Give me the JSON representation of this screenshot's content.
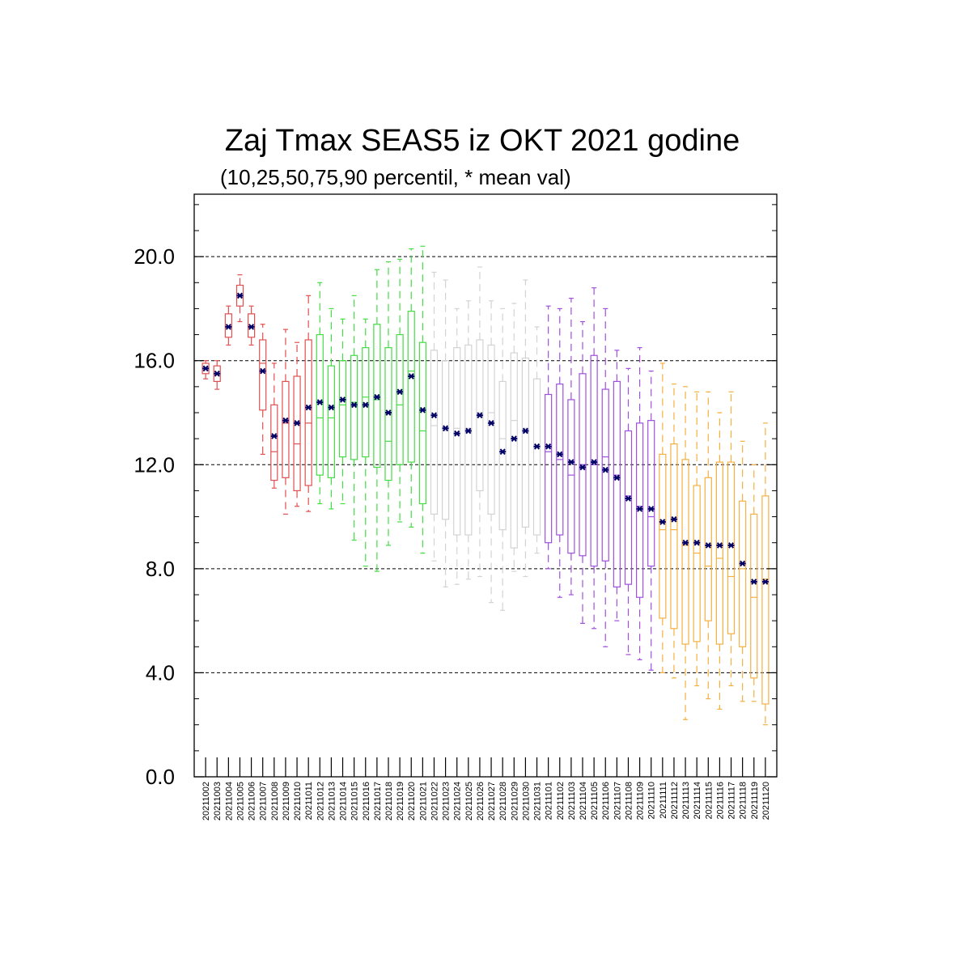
{
  "chart_data": {
    "type": "box",
    "title": "Zaj Tmax SEAS5 iz OKT 2021 godine",
    "subtitle": "(10,25,50,75,90 percentil, * mean val)",
    "ylim": [
      0,
      22.4
    ],
    "yticks": [
      "0.0",
      "4.0",
      "8.0",
      "12.0",
      "16.0",
      "20.0"
    ],
    "ytick_values": [
      0,
      4,
      8,
      12,
      16,
      20
    ],
    "grid": "horizontal dashed",
    "colors": {
      "oct_early": "#e05050",
      "oct_mid": "#44dd44",
      "oct_late": "#d3d3d3",
      "nov_early": "#a050e0",
      "nov_late": "#f5b041",
      "mean_marker": "#000066"
    },
    "categories": [
      "20211002",
      "20211003",
      "20211004",
      "20211005",
      "20211006",
      "20211007",
      "20211008",
      "20211009",
      "20211010",
      "20211011",
      "20211012",
      "20211013",
      "20211014",
      "20211015",
      "20211016",
      "20211017",
      "20211018",
      "20211019",
      "20211020",
      "20211021",
      "20211022",
      "20211023",
      "20211024",
      "20211025",
      "20211026",
      "20211027",
      "20211028",
      "20211029",
      "20211030",
      "20211031",
      "20211101",
      "20211102",
      "20211103",
      "20211104",
      "20211105",
      "20211106",
      "20211107",
      "20211108",
      "20211109",
      "20211110",
      "20211111",
      "20211112",
      "20211113",
      "20211114",
      "20211115",
      "20211116",
      "20211117",
      "20211118",
      "20211119",
      "20211120"
    ],
    "boxes": [
      {
        "p10": 15.3,
        "p25": 15.5,
        "p50": 15.7,
        "p75": 15.9,
        "p90": 16.0,
        "mean": 15.7,
        "color": "oct_early"
      },
      {
        "p10": 14.9,
        "p25": 15.2,
        "p50": 15.5,
        "p75": 15.8,
        "p90": 16.0,
        "mean": 15.5,
        "color": "oct_early"
      },
      {
        "p10": 16.6,
        "p25": 16.9,
        "p50": 17.3,
        "p75": 17.8,
        "p90": 18.1,
        "mean": 17.3,
        "color": "oct_early"
      },
      {
        "p10": 17.5,
        "p25": 18.1,
        "p50": 18.5,
        "p75": 18.9,
        "p90": 19.3,
        "mean": 18.5,
        "color": "oct_early"
      },
      {
        "p10": 16.6,
        "p25": 16.9,
        "p50": 17.3,
        "p75": 17.8,
        "p90": 18.1,
        "mean": 17.3,
        "color": "oct_early"
      },
      {
        "p10": 12.4,
        "p25": 14.1,
        "p50": 15.9,
        "p75": 16.8,
        "p90": 17.4,
        "mean": 15.6,
        "color": "oct_early"
      },
      {
        "p10": 11.1,
        "p25": 11.4,
        "p50": 12.5,
        "p75": 14.3,
        "p90": 15.9,
        "mean": 13.1,
        "color": "oct_early"
      },
      {
        "p10": 10.1,
        "p25": 11.5,
        "p50": 13.6,
        "p75": 15.2,
        "p90": 17.2,
        "mean": 13.7,
        "color": "oct_early"
      },
      {
        "p10": 10.4,
        "p25": 11.0,
        "p50": 12.8,
        "p75": 15.4,
        "p90": 16.7,
        "mean": 13.6,
        "color": "oct_early"
      },
      {
        "p10": 10.2,
        "p25": 11.2,
        "p50": 13.6,
        "p75": 16.8,
        "p90": 18.5,
        "mean": 14.2,
        "color": "oct_early"
      },
      {
        "p10": 10.5,
        "p25": 11.6,
        "p50": 13.8,
        "p75": 17.0,
        "p90": 19.0,
        "mean": 14.4,
        "color": "oct_mid"
      },
      {
        "p10": 10.3,
        "p25": 11.5,
        "p50": 13.8,
        "p75": 15.8,
        "p90": 18.0,
        "mean": 14.2,
        "color": "oct_mid"
      },
      {
        "p10": 10.5,
        "p25": 12.3,
        "p50": 14.3,
        "p75": 16.0,
        "p90": 17.6,
        "mean": 14.5,
        "color": "oct_mid"
      },
      {
        "p10": 9.1,
        "p25": 12.2,
        "p50": 14.4,
        "p75": 16.2,
        "p90": 18.5,
        "mean": 14.3,
        "color": "oct_mid"
      },
      {
        "p10": 8.1,
        "p25": 12.3,
        "p50": 14.6,
        "p75": 16.5,
        "p90": 17.6,
        "mean": 14.3,
        "color": "oct_mid"
      },
      {
        "p10": 7.9,
        "p25": 11.9,
        "p50": 14.5,
        "p75": 17.4,
        "p90": 19.5,
        "mean": 14.6,
        "color": "oct_mid"
      },
      {
        "p10": 8.9,
        "p25": 11.4,
        "p50": 12.9,
        "p75": 16.5,
        "p90": 19.8,
        "mean": 14.0,
        "color": "oct_mid"
      },
      {
        "p10": 9.8,
        "p25": 12.0,
        "p50": 14.3,
        "p75": 17.0,
        "p90": 19.9,
        "mean": 14.8,
        "color": "oct_mid"
      },
      {
        "p10": 9.6,
        "p25": 12.1,
        "p50": 15.6,
        "p75": 17.9,
        "p90": 20.3,
        "mean": 15.4,
        "color": "oct_mid"
      },
      {
        "p10": 8.6,
        "p25": 10.5,
        "p50": 13.3,
        "p75": 16.7,
        "p90": 20.4,
        "mean": 14.1,
        "color": "oct_mid"
      },
      {
        "p10": 8.3,
        "p25": 10.1,
        "p50": 13.5,
        "p75": 16.4,
        "p90": 19.4,
        "mean": 13.9,
        "color": "oct_late"
      },
      {
        "p10": 7.3,
        "p25": 9.9,
        "p50": 13.3,
        "p75": 16.0,
        "p90": 19.1,
        "mean": 13.4,
        "color": "oct_late"
      },
      {
        "p10": 7.4,
        "p25": 9.3,
        "p50": 13.4,
        "p75": 16.5,
        "p90": 18.0,
        "mean": 13.2,
        "color": "oct_late"
      },
      {
        "p10": 7.6,
        "p25": 9.3,
        "p50": 13.4,
        "p75": 16.6,
        "p90": 18.3,
        "mean": 13.3,
        "color": "oct_late"
      },
      {
        "p10": 7.7,
        "p25": 11.0,
        "p50": 14.0,
        "p75": 16.8,
        "p90": 19.6,
        "mean": 13.9,
        "color": "oct_late"
      },
      {
        "p10": 6.7,
        "p25": 10.1,
        "p50": 14.0,
        "p75": 16.6,
        "p90": 18.3,
        "mean": 13.6,
        "color": "oct_late"
      },
      {
        "p10": 6.4,
        "p25": 9.5,
        "p50": 13.0,
        "p75": 15.2,
        "p90": 18.0,
        "mean": 12.5,
        "color": "oct_late"
      },
      {
        "p10": 7.9,
        "p25": 8.8,
        "p50": 13.7,
        "p75": 16.3,
        "p90": 18.2,
        "mean": 13.0,
        "color": "oct_late"
      },
      {
        "p10": 7.7,
        "p25": 9.6,
        "p50": 13.4,
        "p75": 16.1,
        "p90": 19.1,
        "mean": 13.3,
        "color": "oct_late"
      },
      {
        "p10": 8.6,
        "p25": 9.3,
        "p50": 12.7,
        "p75": 15.3,
        "p90": 17.3,
        "mean": 12.7,
        "color": "oct_late"
      },
      {
        "p10": 8.0,
        "p25": 9.0,
        "p50": 12.5,
        "p75": 14.7,
        "p90": 18.1,
        "mean": 12.7,
        "color": "nov_early"
      },
      {
        "p10": 6.9,
        "p25": 9.3,
        "p50": 12.2,
        "p75": 15.1,
        "p90": 18.0,
        "mean": 12.4,
        "color": "nov_early"
      },
      {
        "p10": 7.0,
        "p25": 8.6,
        "p50": 11.6,
        "p75": 14.5,
        "p90": 18.4,
        "mean": 12.1,
        "color": "nov_early"
      },
      {
        "p10": 5.9,
        "p25": 8.5,
        "p50": 12.0,
        "p75": 15.5,
        "p90": 17.5,
        "mean": 11.9,
        "color": "nov_early"
      },
      {
        "p10": 5.7,
        "p25": 8.1,
        "p50": 12.0,
        "p75": 16.2,
        "p90": 18.8,
        "mean": 12.1,
        "color": "nov_early"
      },
      {
        "p10": 5.0,
        "p25": 8.3,
        "p50": 12.3,
        "p75": 14.9,
        "p90": 18.0,
        "mean": 11.8,
        "color": "nov_early"
      },
      {
        "p10": 6.0,
        "p25": 7.3,
        "p50": 11.6,
        "p75": 15.2,
        "p90": 16.4,
        "mean": 11.5,
        "color": "nov_early"
      },
      {
        "p10": 4.7,
        "p25": 7.4,
        "p50": 10.8,
        "p75": 13.3,
        "p90": 15.7,
        "mean": 10.7,
        "color": "nov_early"
      },
      {
        "p10": 4.5,
        "p25": 6.9,
        "p50": 10.4,
        "p75": 13.6,
        "p90": 16.5,
        "mean": 10.3,
        "color": "nov_early"
      },
      {
        "p10": 4.1,
        "p25": 8.1,
        "p50": 10.0,
        "p75": 13.7,
        "p90": 15.6,
        "mean": 10.3,
        "color": "nov_early"
      },
      {
        "p10": 4.0,
        "p25": 6.1,
        "p50": 9.5,
        "p75": 12.4,
        "p90": 15.9,
        "mean": 9.8,
        "color": "nov_late"
      },
      {
        "p10": 3.8,
        "p25": 5.7,
        "p50": 9.5,
        "p75": 12.8,
        "p90": 15.1,
        "mean": 9.9,
        "color": "nov_late"
      },
      {
        "p10": 2.2,
        "p25": 5.1,
        "p50": 8.9,
        "p75": 12.2,
        "p90": 15.0,
        "mean": 9.0,
        "color": "nov_late"
      },
      {
        "p10": 3.5,
        "p25": 5.2,
        "p50": 8.6,
        "p75": 11.2,
        "p90": 14.8,
        "mean": 9.0,
        "color": "nov_late"
      },
      {
        "p10": 3.0,
        "p25": 6.0,
        "p50": 8.1,
        "p75": 11.5,
        "p90": 14.8,
        "mean": 8.9,
        "color": "nov_late"
      },
      {
        "p10": 2.6,
        "p25": 5.1,
        "p50": 8.4,
        "p75": 12.1,
        "p90": 14.0,
        "mean": 8.9,
        "color": "nov_late"
      },
      {
        "p10": 3.5,
        "p25": 5.5,
        "p50": 7.7,
        "p75": 12.1,
        "p90": 14.8,
        "mean": 8.9,
        "color": "nov_late"
      },
      {
        "p10": 2.9,
        "p25": 5.0,
        "p50": 8.0,
        "p75": 10.6,
        "p90": 12.9,
        "mean": 8.2,
        "color": "nov_late"
      },
      {
        "p10": 2.9,
        "p25": 3.8,
        "p50": 6.9,
        "p75": 10.1,
        "p90": 12.0,
        "mean": 7.5,
        "color": "nov_late"
      },
      {
        "p10": 2.0,
        "p25": 2.8,
        "p50": 7.6,
        "p75": 10.8,
        "p90": 13.6,
        "mean": 7.5,
        "color": "nov_late"
      }
    ]
  }
}
